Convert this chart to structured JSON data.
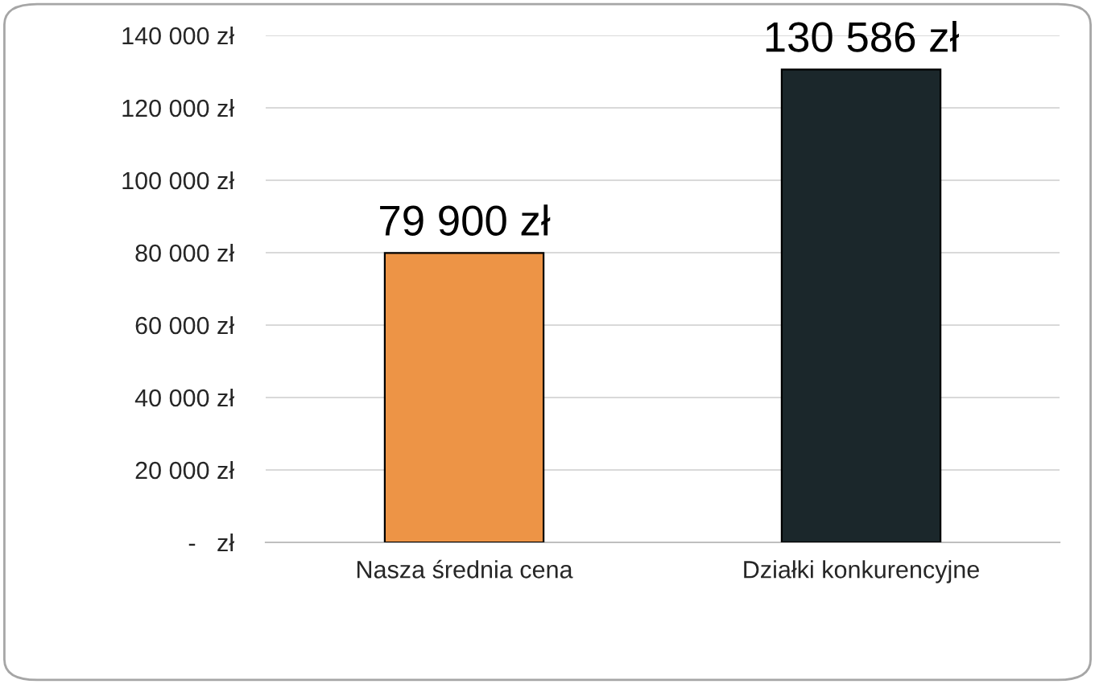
{
  "chart_data": {
    "type": "bar",
    "categories": [
      "Nasza średnia cena",
      "Działki konkurencyjne"
    ],
    "values": [
      79900,
      130586
    ],
    "colors": [
      "#ed9446",
      "#1b272b"
    ],
    "value_labels": [
      "79 900 zł",
      "130 586 zł"
    ],
    "ylim": [
      0,
      140000
    ],
    "yticks": [
      {
        "value": 0,
        "label": "-   zł"
      },
      {
        "value": 20000,
        "label": "20 000 zł"
      },
      {
        "value": 40000,
        "label": "40 000 zł"
      },
      {
        "value": 60000,
        "label": "60 000 zł"
      },
      {
        "value": 80000,
        "label": "80 000 zł"
      },
      {
        "value": 100000,
        "label": "100 000 zł"
      },
      {
        "value": 120000,
        "label": "120 000 zł"
      },
      {
        "value": 140000,
        "label": "140 000 zł"
      }
    ],
    "grid": "y",
    "legend": false
  }
}
